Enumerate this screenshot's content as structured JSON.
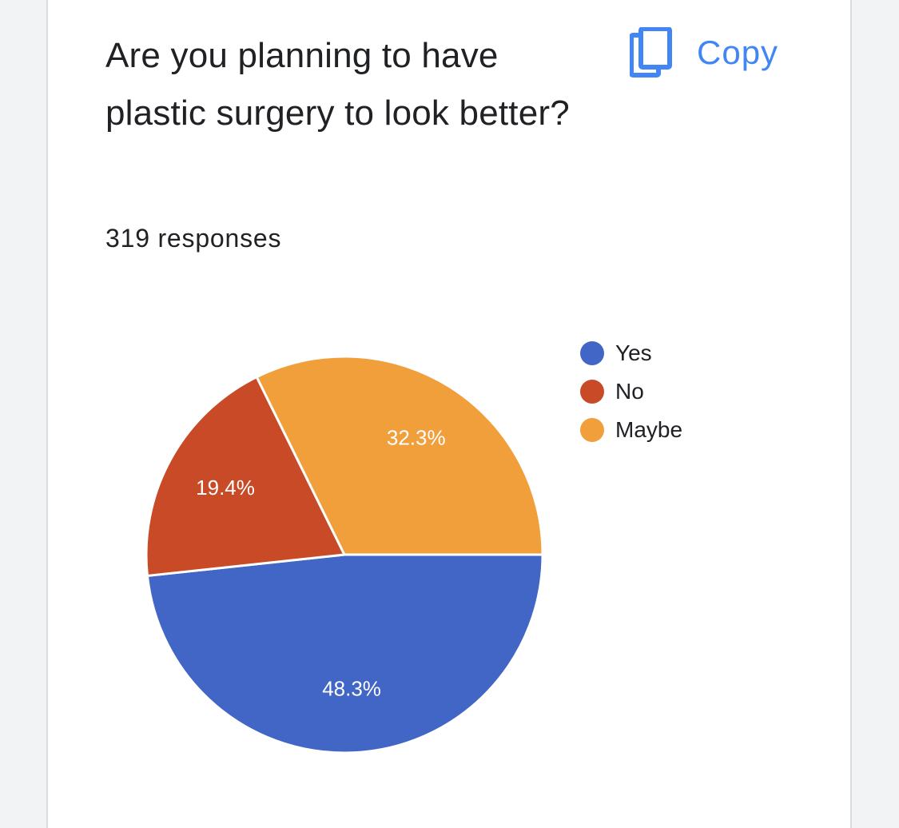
{
  "question": {
    "title": "Are you planning to have plastic surgery to look better?",
    "response_count": "319 responses"
  },
  "toolbar": {
    "copy_label": "Copy",
    "copy_icon": "copy-icon"
  },
  "colors": {
    "accent": "#4285f4",
    "yes": "#4166c5",
    "no": "#c84a27",
    "maybe": "#f09f3a"
  },
  "chart_data": {
    "type": "pie",
    "legend_position": "right",
    "slices": [
      {
        "label": "Yes",
        "value": 48.3,
        "display": "48.3%",
        "color": "#4166c5"
      },
      {
        "label": "No",
        "value": 19.4,
        "display": "19.4%",
        "color": "#c84a27"
      },
      {
        "label": "Maybe",
        "value": 32.3,
        "display": "32.3%",
        "color": "#f09f3a"
      }
    ]
  }
}
